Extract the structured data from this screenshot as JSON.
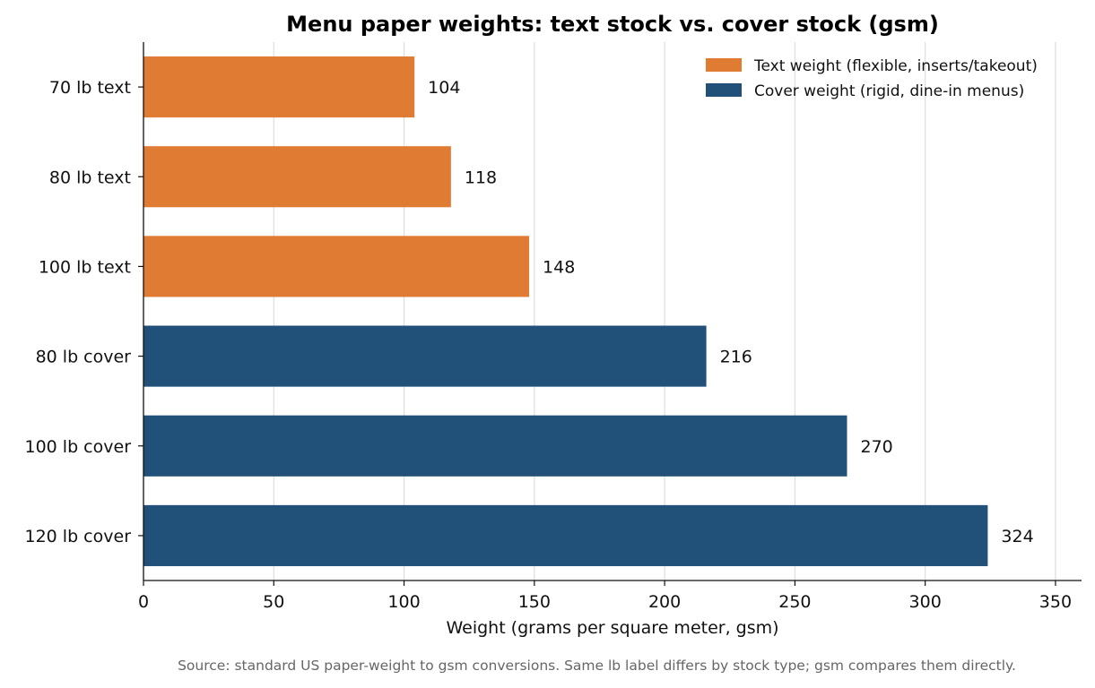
{
  "chart_data": {
    "type": "bar",
    "orientation": "horizontal",
    "title": "Menu paper weights: text stock vs. cover stock (gsm)",
    "xlabel": "Weight (grams per square meter, gsm)",
    "ylabel": "",
    "xlim": [
      0,
      360
    ],
    "xticks": [
      "0",
      "50",
      "100",
      "150",
      "200",
      "250",
      "300",
      "350"
    ],
    "grid": "vertical",
    "legend_position": "top-right",
    "categories": [
      "70 lb text",
      "80 lb text",
      "100 lb text",
      "80 lb cover",
      "100 lb cover",
      "120 lb cover"
    ],
    "values": [
      104,
      118,
      148,
      216,
      270,
      324
    ],
    "value_labels": [
      "104",
      "118",
      "148",
      "216",
      "270",
      "324"
    ],
    "groups": [
      "text",
      "text",
      "text",
      "cover",
      "cover",
      "cover"
    ],
    "series": [
      {
        "key": "text",
        "name": "Text weight (flexible, inserts/takeout)",
        "color": "#e07b33"
      },
      {
        "key": "cover",
        "name": "Cover weight (rigid, dine-in menus)",
        "color": "#215078"
      }
    ]
  },
  "footer": {
    "source": "Source: standard US paper-weight to gsm conversions. Same lb label differs by stock type; gsm compares them directly."
  }
}
